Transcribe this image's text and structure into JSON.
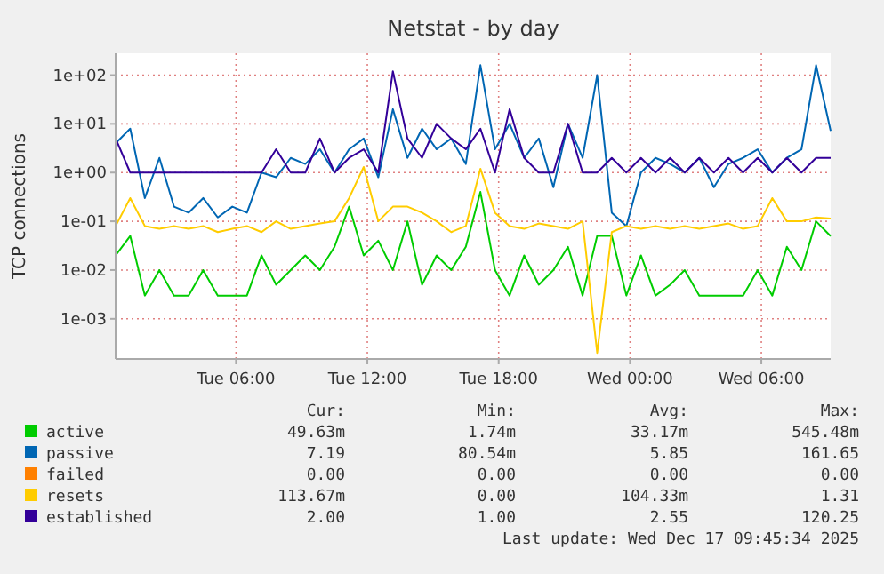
{
  "chart_data": {
    "type": "line",
    "title": "Netstat - by day",
    "ylabel": "TCP connections",
    "log": "y",
    "grid": true,
    "legend": "bottom",
    "marker": "none",
    "line_style": "solid",
    "x": [
      "2025-12-16T00:30",
      "2025-12-16T01:10",
      "2025-12-16T01:50",
      "2025-12-16T02:30",
      "2025-12-16T03:10",
      "2025-12-16T03:50",
      "2025-12-16T04:30",
      "2025-12-16T05:10",
      "2025-12-16T05:50",
      "2025-12-16T06:30",
      "2025-12-16T07:10",
      "2025-12-16T07:50",
      "2025-12-16T08:30",
      "2025-12-16T09:10",
      "2025-12-16T09:50",
      "2025-12-16T10:30",
      "2025-12-16T11:10",
      "2025-12-16T11:50",
      "2025-12-16T12:30",
      "2025-12-16T13:10",
      "2025-12-16T13:50",
      "2025-12-16T14:30",
      "2025-12-16T15:10",
      "2025-12-16T15:50",
      "2025-12-16T16:30",
      "2025-12-16T17:10",
      "2025-12-16T17:50",
      "2025-12-16T18:30",
      "2025-12-16T19:10",
      "2025-12-16T19:50",
      "2025-12-16T20:30",
      "2025-12-16T21:10",
      "2025-12-16T21:50",
      "2025-12-16T22:30",
      "2025-12-16T23:10",
      "2025-12-16T23:50",
      "2025-12-17T00:30",
      "2025-12-17T01:10",
      "2025-12-17T01:50",
      "2025-12-17T02:30",
      "2025-12-17T03:10",
      "2025-12-17T03:50",
      "2025-12-17T04:30",
      "2025-12-17T05:10",
      "2025-12-17T05:50",
      "2025-12-17T06:30",
      "2025-12-17T07:10",
      "2025-12-17T07:50",
      "2025-12-17T08:30",
      "2025-12-17T09:10"
    ],
    "xlim": [
      "2025-12-16T00:30",
      "2025-12-17T09:10"
    ],
    "xticks": [
      {
        "value": "2025-12-16T06:00",
        "label": "Tue 06:00"
      },
      {
        "value": "2025-12-16T12:00",
        "label": "Tue 12:00"
      },
      {
        "value": "2025-12-16T18:00",
        "label": "Tue 18:00"
      },
      {
        "value": "2025-12-17T00:00",
        "label": "Wed 00:00"
      },
      {
        "value": "2025-12-17T06:00",
        "label": "Wed 06:00"
      }
    ],
    "ylim": [
      0.00015,
      280
    ],
    "yticks": [
      {
        "value": 0.001,
        "label": "1e-03"
      },
      {
        "value": 0.01,
        "label": "1e-02"
      },
      {
        "value": 0.1,
        "label": "1e-01"
      },
      {
        "value": 1,
        "label": "1e+00"
      },
      {
        "value": 10,
        "label": "1e+01"
      },
      {
        "value": 100,
        "label": "1e+02"
      }
    ],
    "series": [
      {
        "name": "active",
        "color": "#00cc00",
        "values": [
          0.02,
          0.05,
          0.003,
          0.01,
          0.003,
          0.003,
          0.01,
          0.003,
          0.003,
          0.003,
          0.02,
          0.005,
          0.01,
          0.02,
          0.01,
          0.03,
          0.2,
          0.02,
          0.04,
          0.01,
          0.1,
          0.005,
          0.02,
          0.01,
          0.03,
          0.4,
          0.01,
          0.003,
          0.02,
          0.005,
          0.01,
          0.03,
          0.003,
          0.05,
          0.05,
          0.003,
          0.02,
          0.003,
          0.005,
          0.01,
          0.003,
          0.003,
          0.003,
          0.003,
          0.01,
          0.003,
          0.03,
          0.01,
          0.1,
          0.04963
        ]
      },
      {
        "name": "passive",
        "color": "#0066b3",
        "values": [
          4,
          8,
          0.3,
          2,
          0.2,
          0.15,
          0.3,
          0.12,
          0.2,
          0.15,
          1,
          0.8,
          2,
          1.5,
          3,
          1,
          3,
          5,
          0.8,
          20,
          2,
          8,
          3,
          5,
          1.5,
          160,
          3,
          10,
          2,
          5,
          0.5,
          10,
          2,
          100,
          0.15,
          0.08,
          1,
          2,
          1.5,
          1,
          2,
          0.5,
          1.5,
          2,
          3,
          1,
          2,
          3,
          160,
          7.19
        ]
      },
      {
        "name": "failed",
        "color": "#ff8000",
        "values": [
          null,
          null,
          null,
          null,
          null,
          null,
          null,
          null,
          null,
          null,
          null,
          null,
          null,
          null,
          null,
          null,
          null,
          null,
          null,
          null,
          null,
          null,
          null,
          null,
          null,
          null,
          null,
          null,
          null,
          null,
          null,
          null,
          null,
          null,
          null,
          null,
          null,
          null,
          null,
          null,
          null,
          null,
          null,
          null,
          null,
          null,
          null,
          null,
          null,
          null
        ]
      },
      {
        "name": "resets",
        "color": "#ffcc00",
        "values": [
          0.08,
          0.3,
          0.08,
          0.07,
          0.08,
          0.07,
          0.08,
          0.06,
          0.07,
          0.08,
          0.06,
          0.1,
          0.07,
          0.08,
          0.09,
          0.1,
          0.3,
          1.3,
          0.1,
          0.2,
          0.2,
          0.15,
          0.1,
          0.06,
          0.08,
          1.2,
          0.15,
          0.08,
          0.07,
          0.09,
          0.08,
          0.07,
          0.1,
          0.0002,
          0.06,
          0.08,
          0.07,
          0.08,
          0.07,
          0.08,
          0.07,
          0.08,
          0.09,
          0.07,
          0.08,
          0.3,
          0.1,
          0.1,
          0.12,
          0.11367
        ]
      },
      {
        "name": "established",
        "color": "#330099",
        "values": [
          5,
          1,
          1,
          1,
          1,
          1,
          1,
          1,
          1,
          1,
          1,
          3,
          1,
          1,
          5,
          1,
          2,
          3,
          1,
          120,
          5,
          2,
          10,
          5,
          3,
          8,
          1,
          20,
          2,
          1,
          1,
          10,
          1,
          1,
          2,
          1,
          2,
          1,
          2,
          1,
          2,
          1,
          2,
          1,
          2,
          1,
          2,
          1,
          2,
          2
        ]
      }
    ],
    "annotations": [
      "Cur:",
      "Min:",
      "Avg:",
      "Max:",
      "49.63m",
      "1.74m",
      "33.17m",
      "545.48m",
      "7.19",
      "80.54m",
      "5.85",
      "161.65",
      "0.00",
      "0.00",
      "0.00",
      "0.00",
      "113.67m",
      "0.00",
      "104.33m",
      "1.31",
      "2.00",
      "1.00",
      "2.55",
      "120.25",
      "Last update: Wed Dec 17 09:45:34 2025"
    ]
  }
}
